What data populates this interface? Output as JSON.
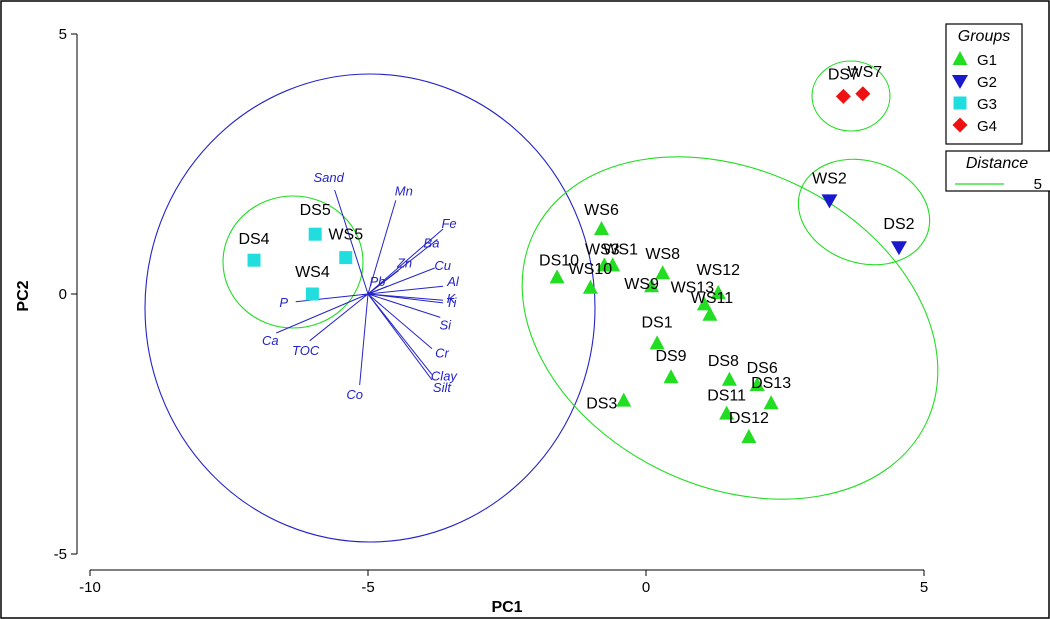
{
  "chart_data": {
    "type": "scatter",
    "xlabel": "PC1",
    "ylabel": "PC2",
    "xlim": [
      -10.8,
      5.5
    ],
    "ylim": [
      -5.0,
      5.0
    ],
    "x_ticks": [
      -10,
      -5,
      0,
      5
    ],
    "x_tick_labels": [
      "-10",
      "-5",
      "0",
      "5"
    ],
    "y_ticks": [
      -5,
      0,
      5
    ],
    "y_tick_labels": [
      "-5",
      "0",
      "5"
    ],
    "grid": false,
    "legend_groups": {
      "title": "Groups",
      "placement": "top-right",
      "entries": [
        {
          "name": "G1",
          "marker": "triangle-up",
          "color": "#22dd22"
        },
        {
          "name": "G2",
          "marker": "triangle-down",
          "color": "#1a1acc"
        },
        {
          "name": "G3",
          "marker": "square",
          "color": "#22dddd"
        },
        {
          "name": "G4",
          "marker": "diamond",
          "color": "#ee1111"
        }
      ]
    },
    "legend_distance": {
      "title": "Distance",
      "entries": [
        {
          "name": "5",
          "color": "#22dd22"
        }
      ]
    },
    "series": [
      {
        "name": "G1",
        "points": [
          {
            "label": "WS6",
            "x": -0.8,
            "y": 1.25
          },
          {
            "label": "WS1",
            "x": -0.6,
            "y": 0.55
          },
          {
            "label": "WS3",
            "x": -0.75,
            "y": 0.55
          },
          {
            "label": "DS10",
            "x": -1.6,
            "y": 0.32
          },
          {
            "label": "WS10",
            "x": -1.0,
            "y": 0.12
          },
          {
            "label": "WS8",
            "x": 0.3,
            "y": 0.4
          },
          {
            "label": "WS9",
            "x": 0.1,
            "y": 0.15
          },
          {
            "label": "WS12",
            "x": 1.3,
            "y": 0.02
          },
          {
            "label": "WS13",
            "x": 1.05,
            "y": -0.2
          },
          {
            "label": "WS11",
            "x": 1.15,
            "y": -0.4
          },
          {
            "label": "DS1",
            "x": 0.2,
            "y": -0.95
          },
          {
            "label": "DS9",
            "x": 0.45,
            "y": -1.6
          },
          {
            "label": "DS3",
            "x": -0.4,
            "y": -2.05
          },
          {
            "label": "DS8",
            "x": 1.5,
            "y": -1.65
          },
          {
            "label": "DS6",
            "x": 2.0,
            "y": -1.75
          },
          {
            "label": "DS13",
            "x": 2.25,
            "y": -2.1
          },
          {
            "label": "DS11",
            "x": 1.45,
            "y": -2.3
          },
          {
            "label": "DS12",
            "x": 1.85,
            "y": -2.75
          }
        ]
      },
      {
        "name": "G2",
        "points": [
          {
            "label": "WS2",
            "x": 3.3,
            "y": 1.8
          },
          {
            "label": "DS2",
            "x": 4.55,
            "y": 0.9
          }
        ]
      },
      {
        "name": "G3",
        "points": [
          {
            "label": "DS5",
            "x": -5.95,
            "y": 1.15
          },
          {
            "label": "DS4",
            "x": -7.05,
            "y": 0.65
          },
          {
            "label": "WS5",
            "x": -5.4,
            "y": 0.7
          },
          {
            "label": "WS4",
            "x": -6.0,
            "y": 0.0
          }
        ]
      },
      {
        "name": "G4",
        "points": [
          {
            "label": "DS7",
            "x": 3.55,
            "y": 3.8
          },
          {
            "label": "WS7",
            "x": 3.9,
            "y": 3.85
          }
        ]
      }
    ],
    "vectors": {
      "origin": [
        -5.0,
        0.0
      ],
      "items": [
        {
          "label": "Sand",
          "x": -5.6,
          "y": 2.0
        },
        {
          "label": "Mn",
          "x": -4.5,
          "y": 1.8
        },
        {
          "label": "Fe",
          "x": -3.65,
          "y": 1.25
        },
        {
          "label": "Ba",
          "x": -3.75,
          "y": 1.05
        },
        {
          "label": "Zn",
          "x": -4.45,
          "y": 0.45
        },
        {
          "label": "Cu",
          "x": -3.8,
          "y": 0.5
        },
        {
          "label": "Pb",
          "x": -4.65,
          "y": 0.15
        },
        {
          "label": "Al",
          "x": -3.65,
          "y": 0.15
        },
        {
          "label": "K",
          "x": -3.65,
          "y": -0.12
        },
        {
          "label": "Ti",
          "x": -3.65,
          "y": -0.17
        },
        {
          "label": "Si",
          "x": -3.7,
          "y": -0.45
        },
        {
          "label": "P",
          "x": -6.3,
          "y": -0.15
        },
        {
          "label": "Ca",
          "x": -6.65,
          "y": -0.75
        },
        {
          "label": "TOC",
          "x": -6.05,
          "y": -0.9
        },
        {
          "label": "Cr",
          "x": -3.85,
          "y": -1.05
        },
        {
          "label": "Clay",
          "x": -3.85,
          "y": -1.55
        },
        {
          "label": "Silt",
          "x": -3.85,
          "y": -1.65
        },
        {
          "label": "Co",
          "x": -5.15,
          "y": -1.75
        }
      ]
    }
  }
}
